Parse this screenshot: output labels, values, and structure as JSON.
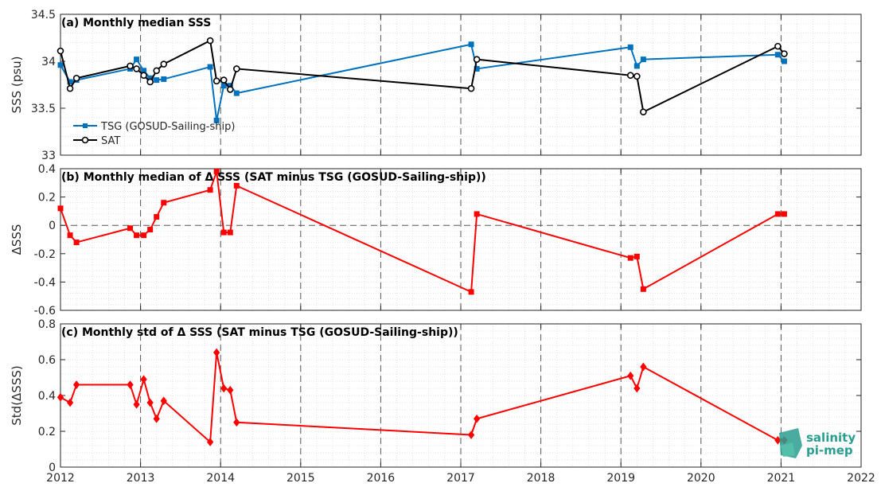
{
  "chart_data": [
    {
      "type": "line",
      "title": "(a) Monthly median SSS",
      "ylabel": "SSS (psu)",
      "xlim": [
        2012,
        2022
      ],
      "ylim": [
        33,
        34.5
      ],
      "yticks": [
        "33",
        "33.5",
        "34",
        "34.5"
      ],
      "grid": "minor dotted",
      "legend_position": "lower-left",
      "series": [
        {
          "name": "TSG (GOSUD-Sailing-ship)",
          "color": "#0072bd",
          "marker": "square",
          "x": [
            2012.0,
            2012.12,
            2012.2,
            2012.87,
            2012.95,
            2013.04,
            2013.12,
            2013.2,
            2013.29,
            2013.87,
            2013.95,
            2014.04,
            2014.12,
            2014.2,
            2017.13,
            2017.2,
            2019.12,
            2019.2,
            2019.28,
            2020.96,
            2021.04
          ],
          "y": [
            33.96,
            33.78,
            33.8,
            33.92,
            34.02,
            33.9,
            33.82,
            33.8,
            33.81,
            33.94,
            33.37,
            33.74,
            33.74,
            33.66,
            34.18,
            33.92,
            34.15,
            33.95,
            34.02,
            34.07,
            34.0
          ]
        },
        {
          "name": "SAT",
          "color": "#000000",
          "marker": "circle",
          "x": [
            2012.0,
            2012.12,
            2012.2,
            2012.87,
            2012.95,
            2013.04,
            2013.12,
            2013.2,
            2013.29,
            2013.87,
            2013.95,
            2014.04,
            2014.12,
            2014.2,
            2017.13,
            2017.2,
            2019.12,
            2019.2,
            2019.28,
            2020.96,
            2021.04
          ],
          "y": [
            34.11,
            33.71,
            33.82,
            33.95,
            33.92,
            33.85,
            33.78,
            33.9,
            33.97,
            34.22,
            33.79,
            33.8,
            33.7,
            33.92,
            33.71,
            34.02,
            33.85,
            33.84,
            33.46,
            34.16,
            34.08
          ]
        }
      ]
    },
    {
      "type": "line",
      "title": "(b) Monthly median of Δ SSS (SAT minus TSG (GOSUD-Sailing-ship))",
      "ylabel": "ΔSSS",
      "xlim": [
        2012,
        2022
      ],
      "ylim": [
        -0.6,
        0.4
      ],
      "yticks": [
        "-0.6",
        "-0.4",
        "-0.2",
        "0",
        "0.2",
        "0.4"
      ],
      "zero_line": true,
      "series": [
        {
          "color": "#ff0000",
          "marker": "square",
          "x": [
            2012.0,
            2012.12,
            2012.2,
            2012.87,
            2012.95,
            2013.04,
            2013.12,
            2013.2,
            2013.29,
            2013.87,
            2013.95,
            2014.04,
            2014.12,
            2014.2,
            2017.13,
            2017.2,
            2019.12,
            2019.2,
            2019.28,
            2020.96,
            2021.04
          ],
          "y": [
            0.12,
            -0.07,
            -0.12,
            -0.02,
            -0.07,
            -0.07,
            -0.03,
            0.06,
            0.16,
            0.25,
            0.38,
            -0.05,
            -0.05,
            0.28,
            -0.47,
            0.08,
            -0.23,
            -0.22,
            -0.45,
            0.08,
            0.08
          ]
        }
      ]
    },
    {
      "type": "line",
      "title": "(c) Monthly std of Δ SSS (SAT minus TSG (GOSUD-Sailing-ship))",
      "ylabel": "Std(ΔSSS)",
      "xlim": [
        2012,
        2022
      ],
      "ylim": [
        0,
        0.8
      ],
      "yticks": [
        "0",
        "0.2",
        "0.4",
        "0.6",
        "0.8"
      ],
      "xticks": [
        "2012",
        "2013",
        "2014",
        "2015",
        "2016",
        "2017",
        "2018",
        "2019",
        "2020",
        "2021",
        "2022"
      ],
      "series": [
        {
          "color": "#ff0000",
          "marker": "diamond",
          "x": [
            2012.0,
            2012.12,
            2012.2,
            2012.87,
            2012.95,
            2013.04,
            2013.12,
            2013.2,
            2013.29,
            2013.87,
            2013.95,
            2014.04,
            2014.12,
            2014.2,
            2017.13,
            2017.2,
            2019.12,
            2019.2,
            2019.28,
            2020.96,
            2021.04
          ],
          "y": [
            0.39,
            0.36,
            0.46,
            0.46,
            0.35,
            0.49,
            0.36,
            0.27,
            0.37,
            0.14,
            0.64,
            0.44,
            0.43,
            0.25,
            0.18,
            0.27,
            0.51,
            0.44,
            0.56,
            0.15,
            0.15
          ]
        }
      ]
    }
  ],
  "logo": {
    "line1": "salinity",
    "line2": "pi-mep",
    "color": "#2a9d8f"
  }
}
